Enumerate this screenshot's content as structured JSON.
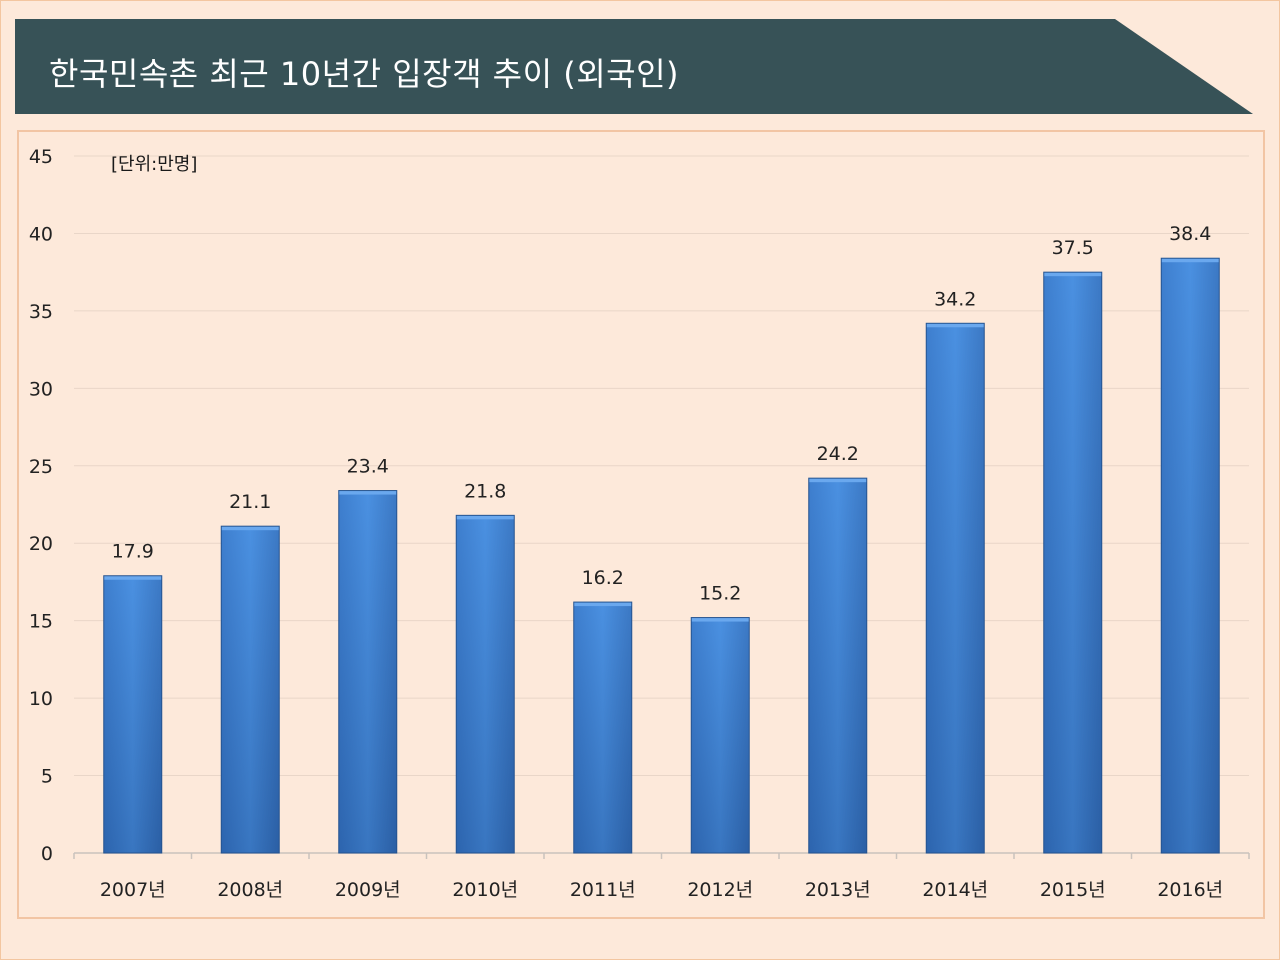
{
  "title": "한국민속촌 최근 10년간 입장객 추이 (외국인)",
  "colors": {
    "banner": "#375257",
    "bar_light": "#4a8fe0",
    "bar_dark": "#2a5fa5",
    "gridline": "#e9d6c8",
    "axis_text": "#222222",
    "background": "#fde9da"
  },
  "chart_data": {
    "type": "bar",
    "title": "한국민속촌 최근 10년간 입장객 추이 (외국인)",
    "unit_label": "[단위:만명]",
    "categories": [
      "2007년",
      "2008년",
      "2009년",
      "2010년",
      "2011년",
      "2012년",
      "2013년",
      "2014년",
      "2015년",
      "2016년"
    ],
    "values": [
      17.9,
      21.1,
      23.4,
      21.8,
      16.2,
      15.2,
      24.2,
      34.2,
      37.5,
      38.4
    ],
    "value_labels": [
      "17.9",
      "21.1",
      "23.4",
      "21.8",
      "16.2",
      "15.2",
      "24.2",
      "34.2",
      "37.5",
      "38.4"
    ],
    "y_ticks": [
      "0",
      "5",
      "10",
      "15",
      "20",
      "25",
      "30",
      "35",
      "40",
      "45"
    ],
    "ylim": [
      0,
      45
    ],
    "xlabel": "",
    "ylabel": "",
    "grid": true,
    "legend": "none"
  }
}
